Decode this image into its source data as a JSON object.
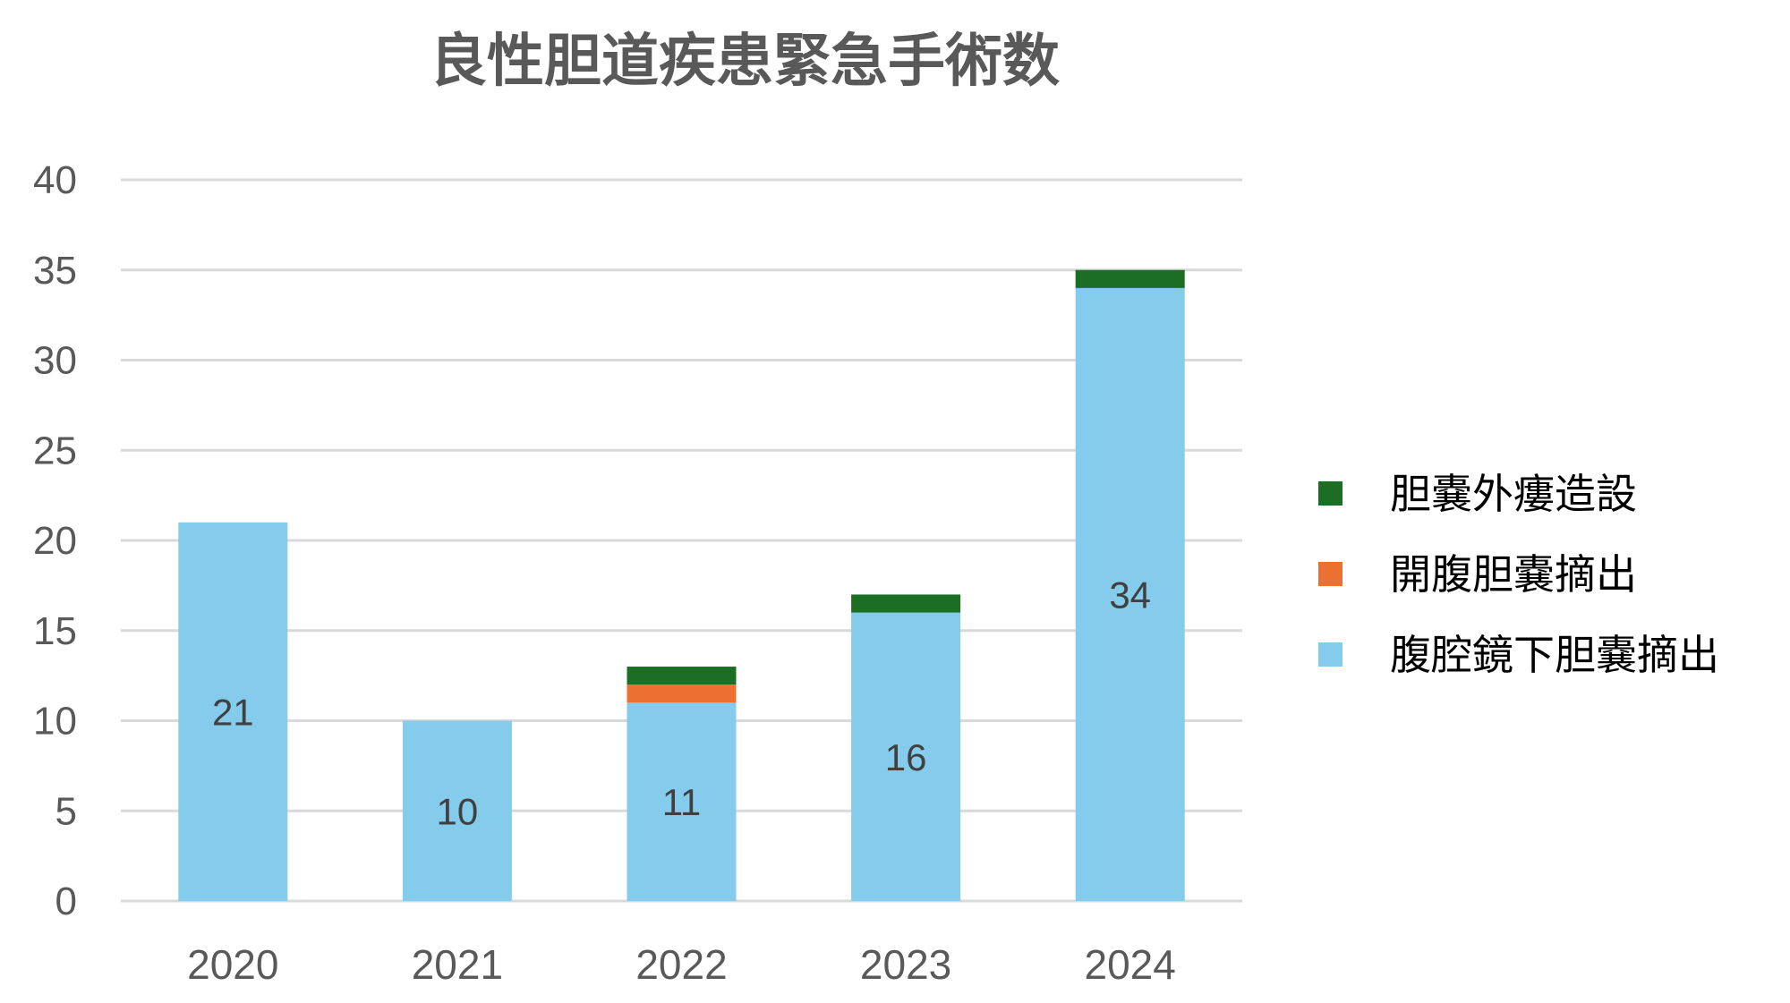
{
  "chart_data": {
    "type": "bar",
    "stacked": true,
    "title": "良性胆道疾患緊急手術数",
    "xlabel": "",
    "ylabel": "",
    "categories": [
      "2020",
      "2021",
      "2022",
      "2023",
      "2024"
    ],
    "ylim": [
      0,
      40
    ],
    "yticks": [
      0,
      5,
      10,
      15,
      20,
      25,
      30,
      35,
      40
    ],
    "grid": true,
    "legend_position": "right",
    "series": [
      {
        "name": "腹腔鏡下胆嚢摘出",
        "color": "#85CBEB",
        "values": [
          21,
          10,
          11,
          16,
          34
        ],
        "show_labels": true
      },
      {
        "name": "開腹胆嚢摘出",
        "color": "#ED7033",
        "values": [
          0,
          0,
          1,
          0,
          0
        ],
        "show_labels": false
      },
      {
        "name": "胆嚢外瘻造設",
        "color": "#1B6E23",
        "values": [
          0,
          0,
          1,
          1,
          1
        ],
        "show_labels": false
      }
    ],
    "legend_order": [
      "胆嚢外瘻造設",
      "開腹胆嚢摘出",
      "腹腔鏡下胆嚢摘出"
    ]
  }
}
